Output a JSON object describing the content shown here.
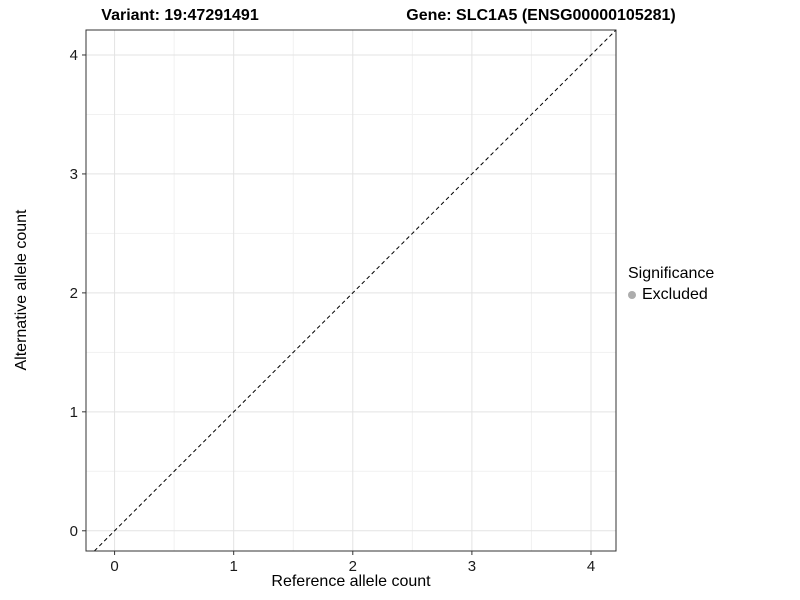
{
  "chart_data": {
    "type": "scatter",
    "title_left": "Variant: 19:47291491",
    "title_right": "Gene: SLC1A5 (ENSG00000105281)",
    "xlabel": "Reference allele count",
    "ylabel": "Alternative allele count",
    "xlim": [
      -0.24,
      4.21
    ],
    "ylim": [
      -0.17,
      4.21
    ],
    "x_ticks": [
      0,
      1,
      2,
      3,
      4
    ],
    "y_ticks": [
      0,
      1,
      2,
      3,
      4
    ],
    "minor_ticks": [
      0.5,
      1.5,
      2.5,
      3.5
    ],
    "points": [],
    "reference_line": {
      "type": "identity",
      "slope": 1,
      "intercept": 0,
      "style": "dashed",
      "color": "#000000"
    },
    "grid": {
      "on": true,
      "major_color": "#e3e3e3",
      "minor_color": "#f1f1f1"
    },
    "panel_border_color": "#333333",
    "tick_color": "#333333",
    "tick_label_color": "#1a1a1a",
    "legend": {
      "title": "Significance",
      "position": "right",
      "items": [
        {
          "label": "Excluded",
          "color": "#adadad",
          "marker": "circle"
        }
      ]
    }
  }
}
